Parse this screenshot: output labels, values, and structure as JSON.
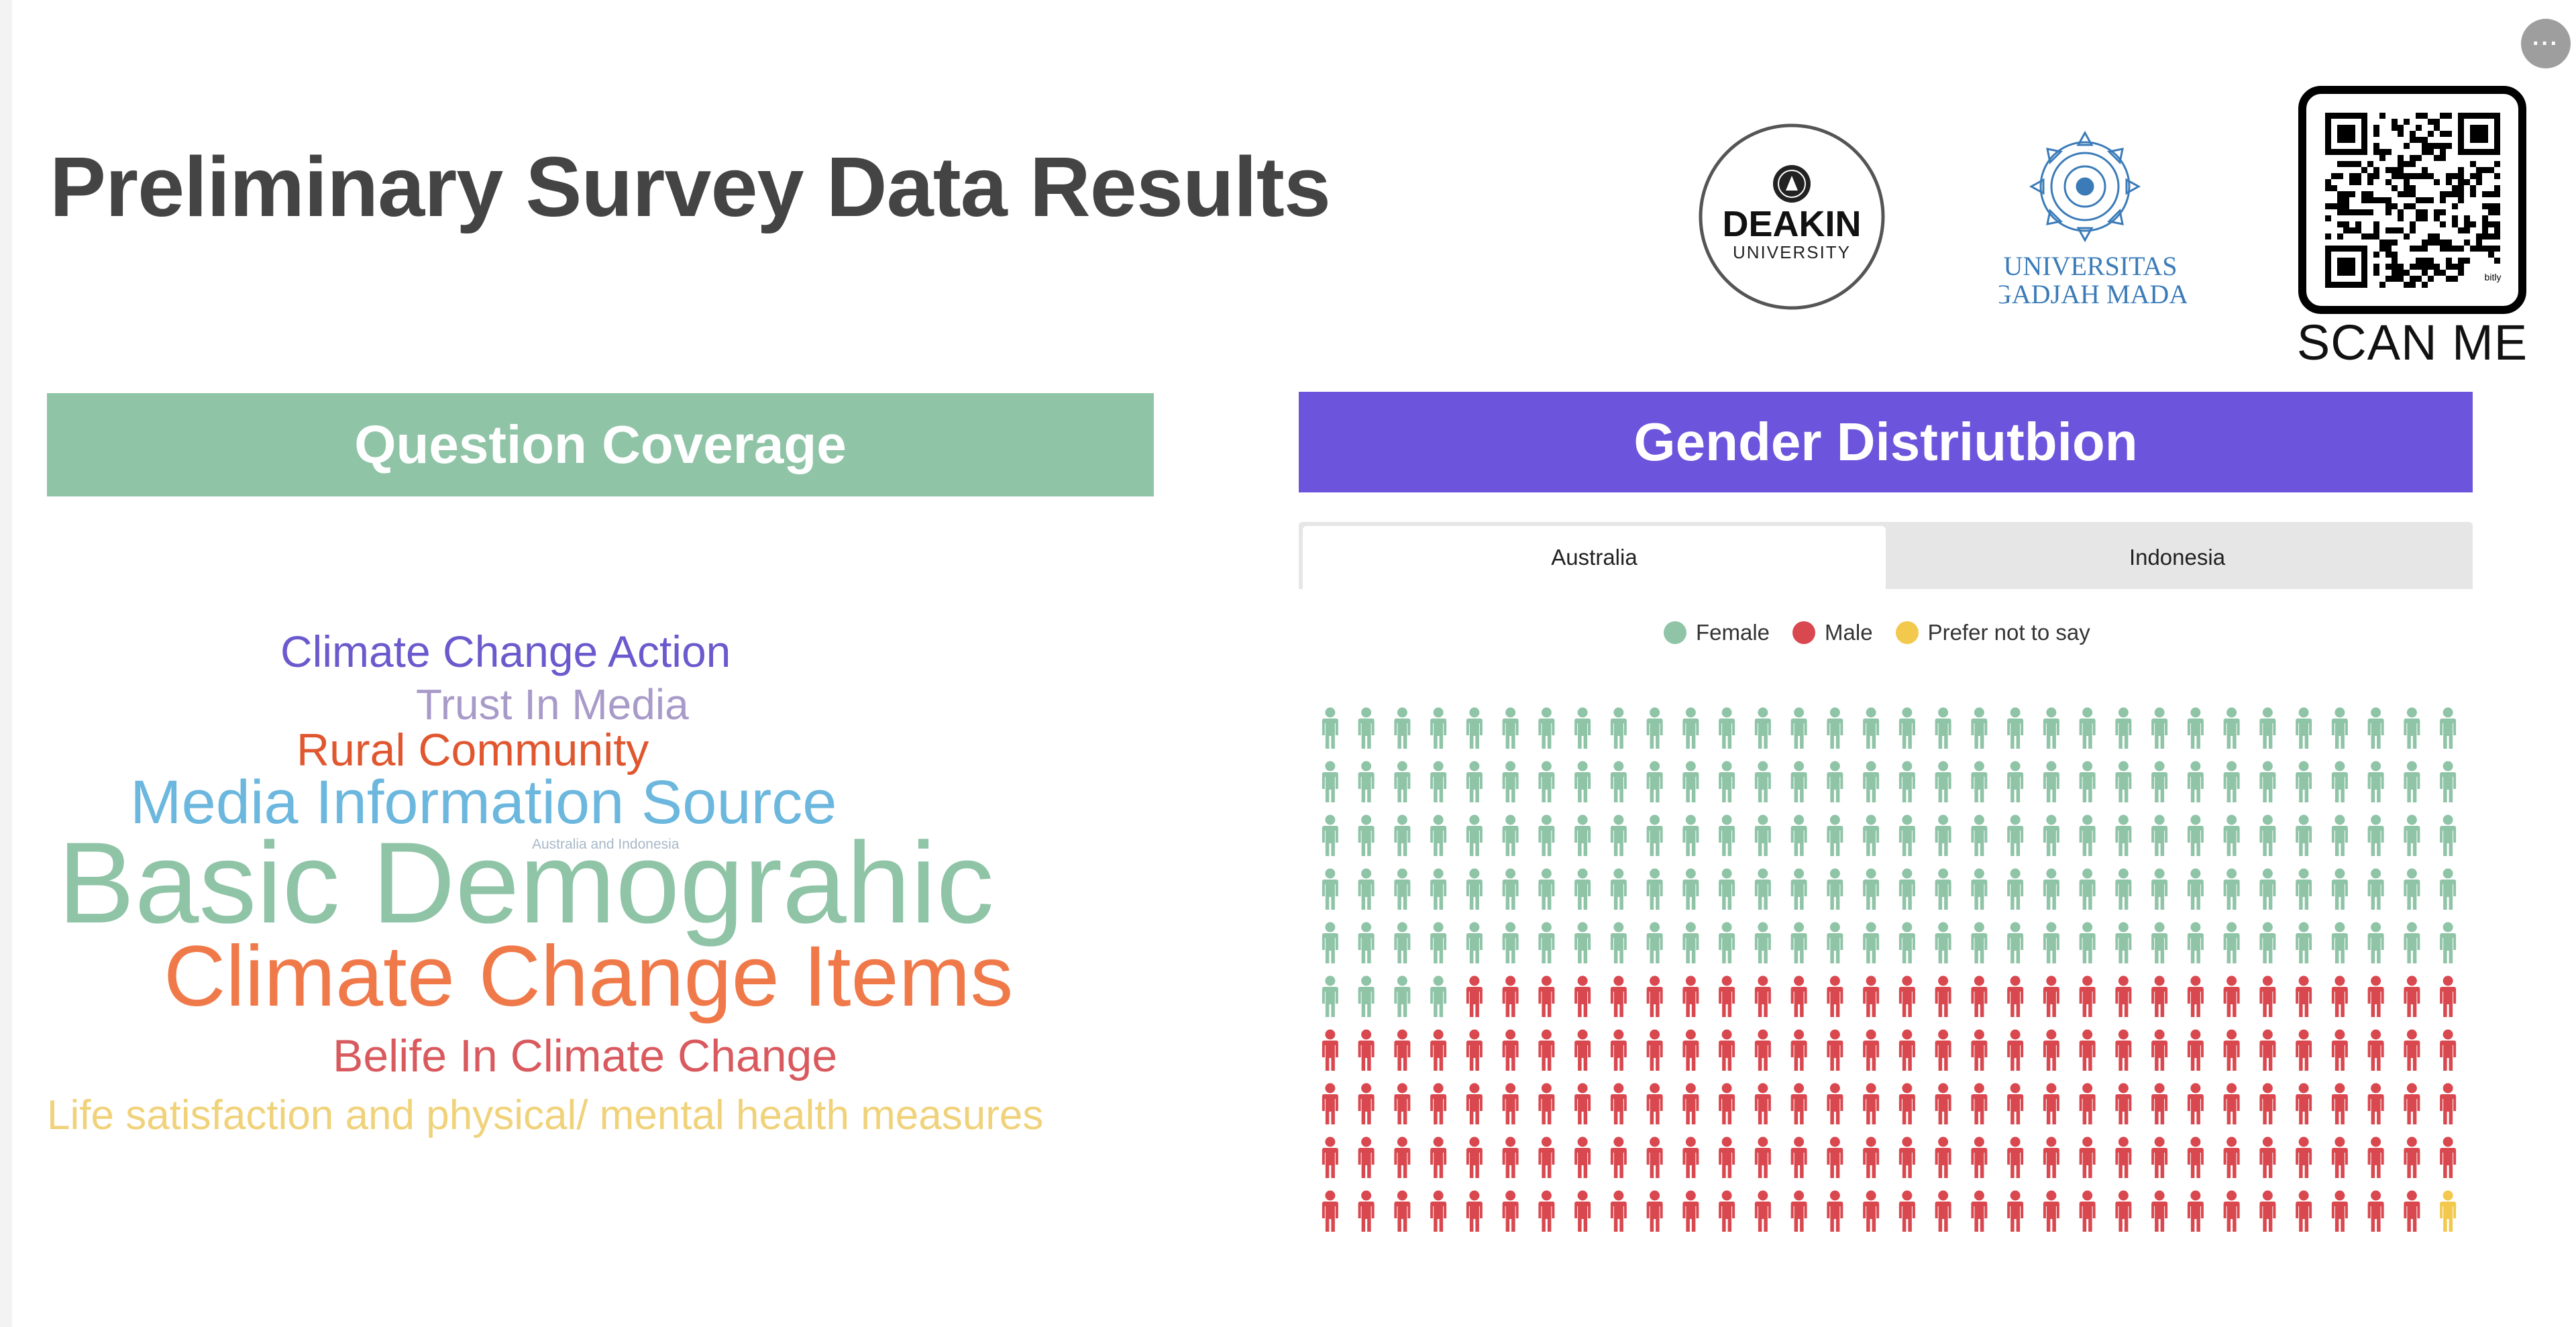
{
  "page": {
    "title": "Preliminary Survey Data Results"
  },
  "logos": {
    "deakin": {
      "line1": "DEAKIN",
      "line2": "UNIVERSITY"
    },
    "ugm": {
      "line1": "UNIVERSITAS",
      "line2": "GADJAH MADA"
    },
    "qr": {
      "tag": "bitly",
      "caption": "SCAN ME"
    }
  },
  "left_panel": {
    "header": "Question Coverage",
    "words": [
      {
        "text": "Climate Change Action",
        "color": "#6a5acd"
      },
      {
        "text": "Trust In Media",
        "color": "#a89bc9"
      },
      {
        "text": "Rural Community",
        "color": "#e0572f"
      },
      {
        "text": "Media Information Source",
        "color": "#6cb7de"
      },
      {
        "text": "Australia and Indonesia",
        "color": "#a8b8c8"
      },
      {
        "text": "Basic Demograhic",
        "color": "#8fc4a7"
      },
      {
        "text": "Climate Change Items",
        "color": "#f0794a"
      },
      {
        "text": "Belife In Climate Change",
        "color": "#d95a5e"
      },
      {
        "text": "Life satisfaction and physical/ mental health measures",
        "color": "#f0d27a"
      }
    ]
  },
  "right_panel": {
    "header": "Gender Distriutbion",
    "tabs": [
      {
        "label": "Australia",
        "active": true
      },
      {
        "label": "Indonesia",
        "active": false
      }
    ],
    "legend": [
      {
        "label": "Female",
        "color": "#8fc4a7"
      },
      {
        "label": "Male",
        "color": "#d9484f"
      },
      {
        "label": "Prefer not to say",
        "color": "#f2c94c"
      }
    ]
  },
  "chart_data": {
    "type": "waffle",
    "title": "",
    "series": [
      {
        "name": "Female",
        "count": 164,
        "color": "#8fc4a7"
      },
      {
        "name": "Male",
        "count": 155,
        "color": "#d9484f"
      },
      {
        "name": "Prefer not to say",
        "count": 1,
        "color": "#f2c94c"
      }
    ],
    "rows": 10,
    "columns": 32,
    "legend_position": "top-center"
  }
}
